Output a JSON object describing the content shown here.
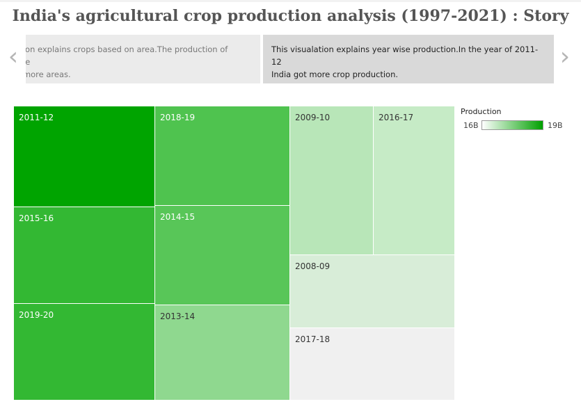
{
  "title": "India's agricultural crop production analysis (1997-2021) : Story",
  "story": {
    "previous_text": "ction explains crops based on area.The production of rice\nn more areas.",
    "current_text": "This visualation explains year wise production.In the year of 2011-12\nIndia got more crop production.",
    "prev_icon": "chevron-left-icon",
    "next_icon": "chevron-right-icon"
  },
  "legend": {
    "title": "Production",
    "min_label": "16B",
    "max_label": "19B",
    "min_color": "#ffffff",
    "max_color": "#00a000"
  },
  "chart_data": {
    "type": "heatmap",
    "chart_kind": "treemap",
    "measure": "Production",
    "color_range": [
      16,
      19
    ],
    "color_unit": "B",
    "tiles": [
      {
        "year": "2011-12",
        "value": 19.0,
        "color": "#00a400"
      },
      {
        "year": "2015-16",
        "value": 18.5,
        "color": "#33b833"
      },
      {
        "year": "2019-20",
        "value": 18.5,
        "color": "#33b833"
      },
      {
        "year": "2018-19",
        "value": 18.3,
        "color": "#4fc34f"
      },
      {
        "year": "2014-15",
        "value": 18.2,
        "color": "#58c658"
      },
      {
        "year": "2013-14",
        "value": 17.6,
        "color": "#8fd88f"
      },
      {
        "year": "2009-10",
        "value": 17.1,
        "color": "#b8e6b8"
      },
      {
        "year": "2016-17",
        "value": 16.9,
        "color": "#c6ebc6"
      },
      {
        "year": "2008-09",
        "value": 16.6,
        "color": "#d8edd8"
      },
      {
        "year": "2017-18",
        "value": 16.0,
        "color": "#f0f0f0"
      }
    ]
  }
}
